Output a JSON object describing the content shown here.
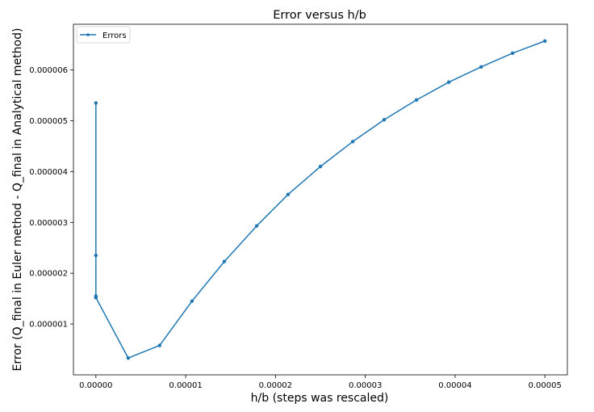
{
  "chart_data": {
    "type": "line",
    "title": "Error versus h/b",
    "xlabel": "h/b (steps was rescaled)",
    "ylabel": "Error (Q_final in Euler method - Q_final in Analytical method)",
    "xlim": [
      -2.5e-06,
      5.25e-05
    ],
    "ylim": [
      0.0,
      6.9e-06
    ],
    "x_ticks": [
      "0.00000",
      "0.00001",
      "0.00002",
      "0.00003",
      "0.00004",
      "0.00005"
    ],
    "y_ticks": [
      "0.000001",
      "0.000002",
      "0.000003",
      "0.000004",
      "0.000005",
      "0.000006"
    ],
    "legend": {
      "position": "top-left",
      "entries": [
        "Errors"
      ]
    },
    "grid": false,
    "color": "#1f77b4",
    "series": [
      {
        "name": "Errors",
        "x": [
          0.0,
          0.0,
          0.0,
          0.0,
          0.0,
          3.6e-06,
          7.1e-06,
          1.07e-05,
          1.43e-05,
          1.79e-05,
          2.14e-05,
          2.5e-05,
          2.86e-05,
          3.21e-05,
          3.57e-05,
          3.93e-05,
          4.29e-05,
          4.64e-05,
          5e-05
        ],
        "y": [
          5.35e-06,
          2.35e-06,
          1.55e-06,
          1.52e-06,
          1.52e-06,
          3.3e-07,
          5.8e-07,
          1.45e-06,
          2.23e-06,
          2.93e-06,
          3.55e-06,
          4.1e-06,
          4.59e-06,
          5.02e-06,
          5.41e-06,
          5.76e-06,
          6.06e-06,
          6.33e-06,
          6.57e-06
        ]
      }
    ]
  }
}
